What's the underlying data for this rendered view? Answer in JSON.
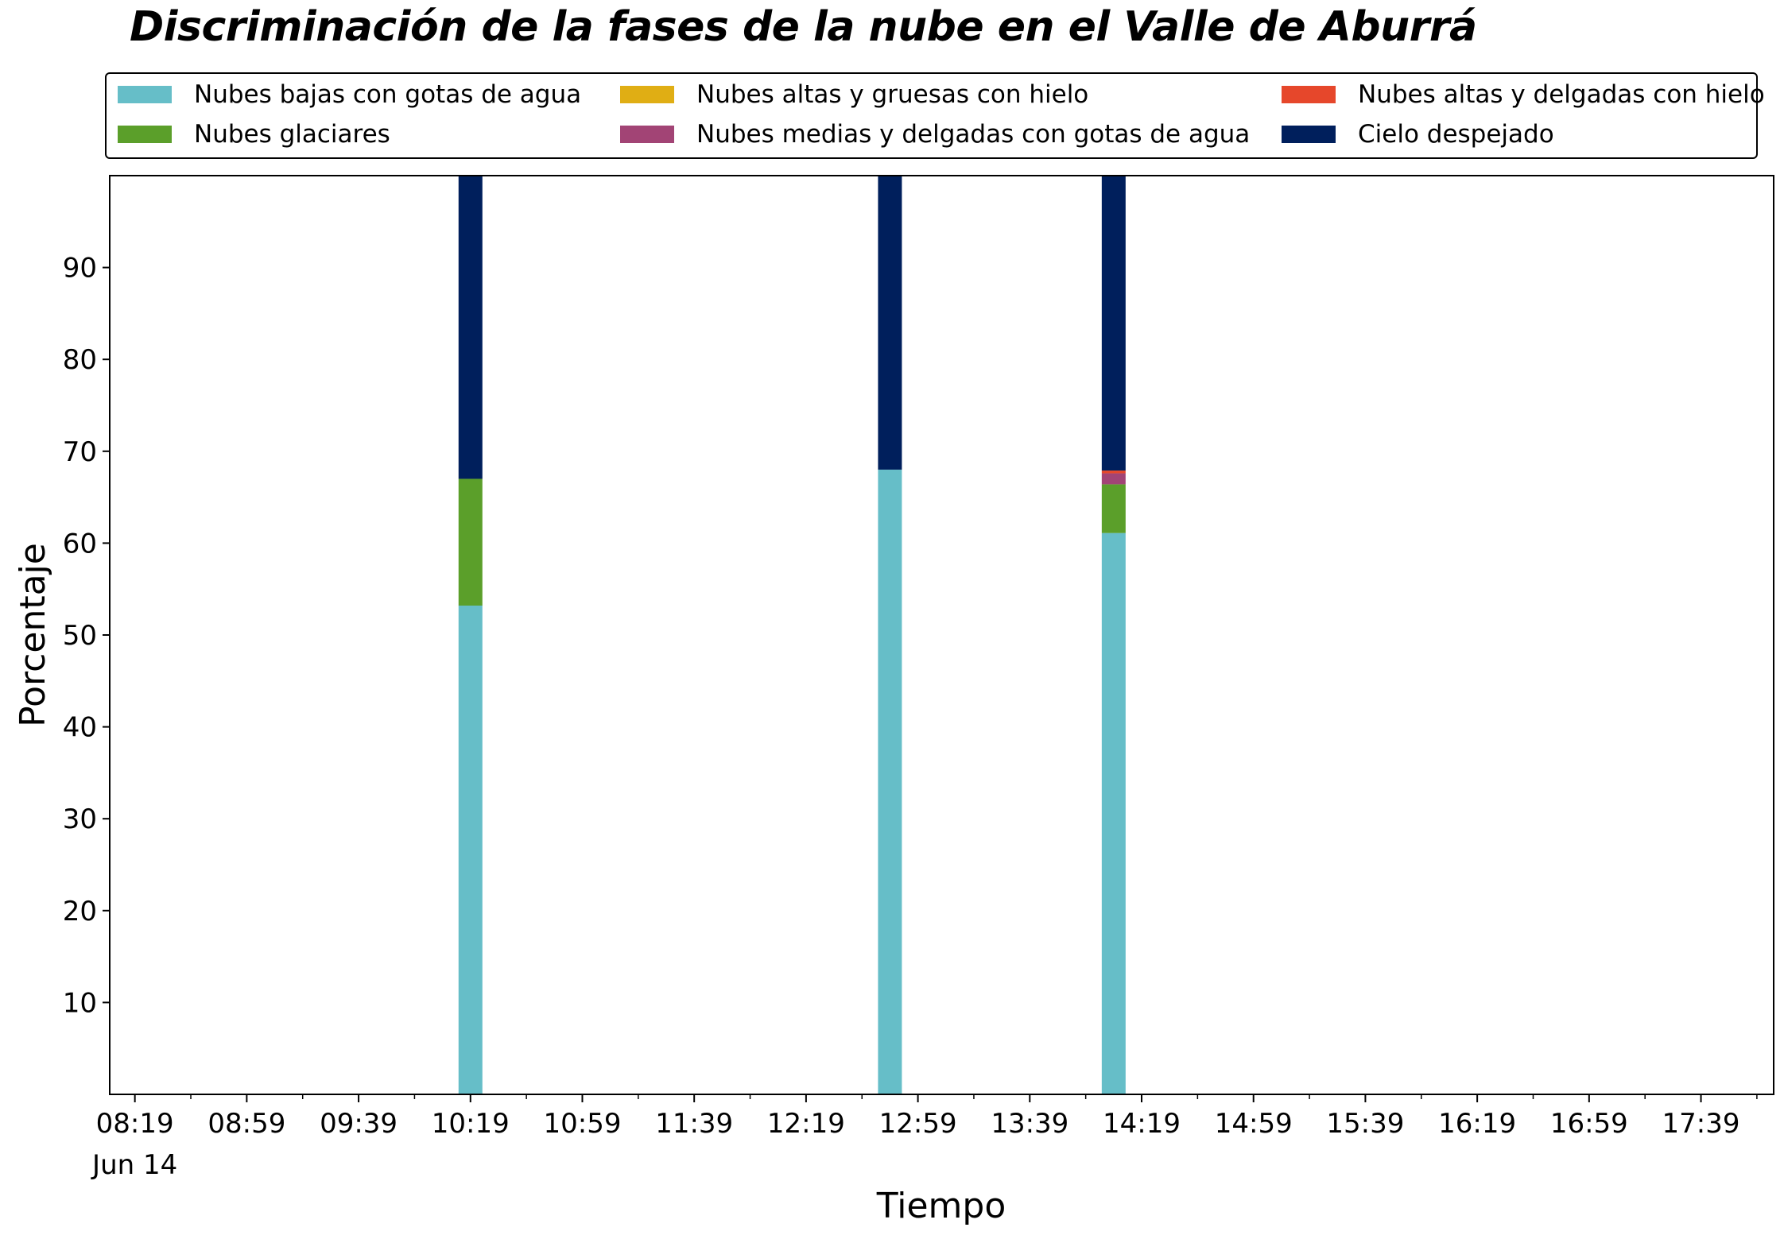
{
  "chart_data": {
    "type": "bar",
    "stacked": true,
    "title": "Discriminación de la fases de la nube en el Valle de Aburrá",
    "xlabel": "Tiempo",
    "ylabel": "Porcentaje",
    "ylim": [
      0,
      100
    ],
    "yticks": [
      10,
      20,
      30,
      40,
      50,
      60,
      70,
      80,
      90
    ],
    "xlim": [
      "08:10",
      "18:05"
    ],
    "xticks_major": [
      "08:19",
      "08:59",
      "09:39",
      "10:19",
      "10:59",
      "11:39",
      "12:19",
      "12:59",
      "13:39",
      "14:19",
      "14:59",
      "15:39",
      "16:19",
      "16:59",
      "17:39"
    ],
    "x_date_label": "Jun 14",
    "x": [
      "10:19",
      "12:49",
      "14:09"
    ],
    "series": [
      {
        "name": "Nubes bajas con gotas de agua",
        "color": "#66bec8",
        "values": [
          53.2,
          68.0,
          61.1
        ]
      },
      {
        "name": "Nubes glaciares",
        "color": "#5b9f2a",
        "values": [
          13.8,
          0,
          5.3
        ]
      },
      {
        "name": "Nubes altas y gruesas con hielo",
        "color": "#e0ae14",
        "values": [
          0,
          0,
          0
        ]
      },
      {
        "name": "Nubes medias y delgadas con gotas de agua",
        "color": "#a24475",
        "values": [
          0,
          0,
          1.2
        ]
      },
      {
        "name": "Nubes altas y delgadas con hielo",
        "color": "#e6472b",
        "values": [
          0,
          0,
          0.3
        ]
      },
      {
        "name": "Cielo despejado",
        "color": "#001f5c",
        "values": [
          33.0,
          32.0,
          32.1
        ]
      }
    ],
    "legend_position": "top",
    "legend_order": [
      0,
      3,
      5,
      1,
      4,
      2
    ],
    "grid": false
  }
}
